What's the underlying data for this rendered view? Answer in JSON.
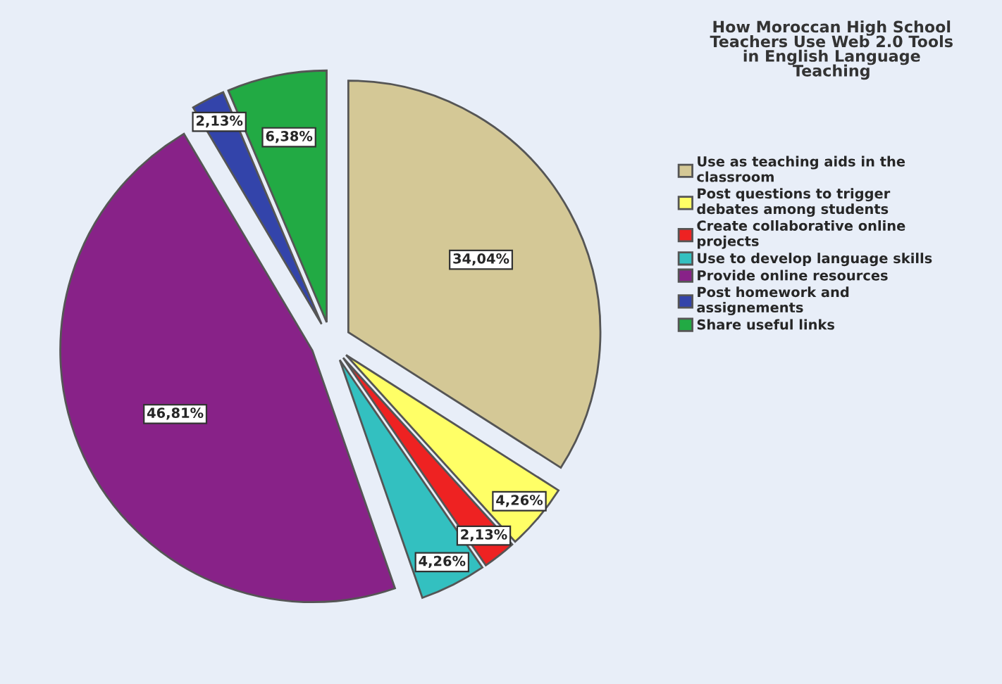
{
  "chart_data": {
    "type": "pie",
    "title": "How Moroccan High School\nTeachers Use Web 2.0 Tools\nin English Language\nTeaching",
    "categories": [
      "Use as teaching aids in the\nclassroom",
      "Post questions to trigger\ndebates among students",
      "Create collaborative online\nprojects",
      "Use to develop language skills",
      "Provide online resources",
      "Post homework and\nassignements",
      "Share useful links"
    ],
    "values": [
      34.04,
      4.26,
      2.13,
      4.26,
      46.81,
      2.13,
      6.38
    ],
    "value_labels": [
      "34,04%",
      "4,26%",
      "2,13%",
      "4,26%",
      "46,81%",
      "2,13%",
      "6,38%"
    ],
    "colors": [
      "#d4c896",
      "#ffff66",
      "#ee2222",
      "#33c0c0",
      "#882288",
      "#3344aa",
      "#22aa44"
    ],
    "legend": "right"
  }
}
